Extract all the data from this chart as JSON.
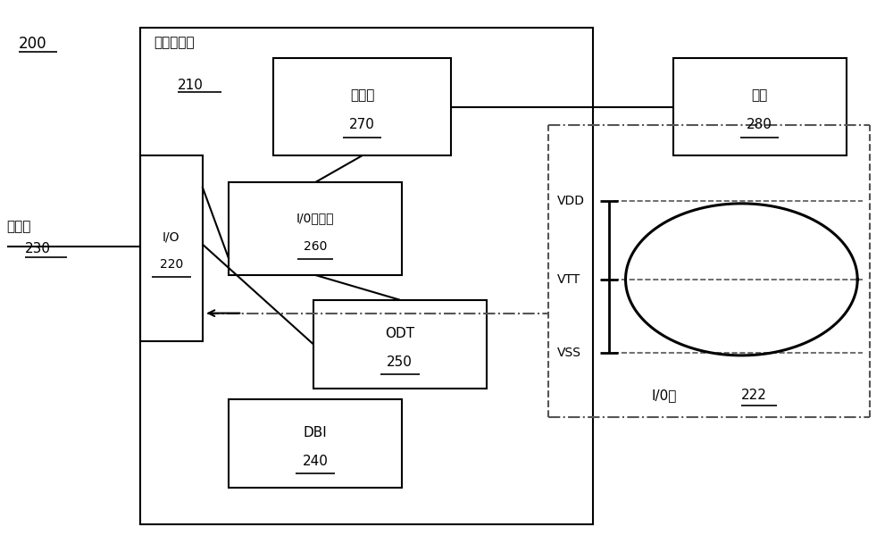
{
  "bg_color": "#ffffff",
  "fig_width": 10.0,
  "fig_height": 6.18,
  "line_color": "#000000",
  "gray_color": "#555555",
  "label_200": "200",
  "label_210_line1": "存储器设备",
  "label_210_line2": "210",
  "label_IO": "I/O",
  "label_220": "220",
  "label_signal": "信号线",
  "label_230": "230",
  "label_DBI": "DBI",
  "label_240": "240",
  "label_ODT": "ODT",
  "label_250": "250",
  "label_driver": "I/0驱动器",
  "label_260": "260",
  "label_reg": "调节器",
  "label_270": "270",
  "label_power": "电源",
  "label_280": "280",
  "label_eye": "I/0眼",
  "label_222": "222",
  "label_VDD": "VDD",
  "label_VTT": "VTT",
  "label_VSS": "VSS"
}
